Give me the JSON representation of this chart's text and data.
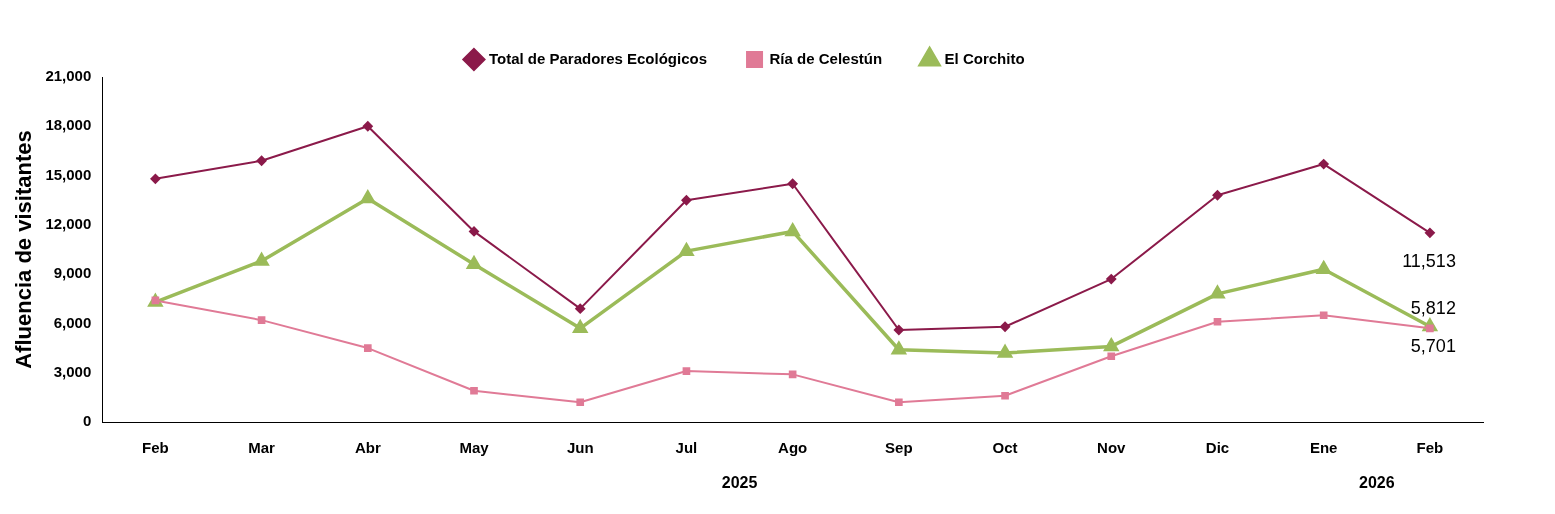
{
  "chart_data": {
    "type": "line",
    "ylabel": "Afluencia de visitantes",
    "categories": [
      "Feb",
      "Mar",
      "Abr",
      "May",
      "Jun",
      "Jul",
      "Ago",
      "Sep",
      "Oct",
      "Nov",
      "Dic",
      "Ene",
      "Feb"
    ],
    "ylim": [
      0,
      21000
    ],
    "yticks": [
      {
        "value": 0,
        "label": "0"
      },
      {
        "value": 3000,
        "label": "3,000"
      },
      {
        "value": 6000,
        "label": "6,000"
      },
      {
        "value": 9000,
        "label": "9,000"
      },
      {
        "value": 12000,
        "label": "12,000"
      },
      {
        "value": 15000,
        "label": "15,000"
      },
      {
        "value": 18000,
        "label": "18,000"
      },
      {
        "value": 21000,
        "label": "21,000"
      }
    ],
    "grid": false,
    "legend": "top",
    "annotations": [
      "2025",
      "2026"
    ],
    "series": [
      {
        "name": "Total de Paradores Ecológicos",
        "color": "#8b1a4a",
        "marker": "diamond",
        "values": [
          14800,
          15900,
          18000,
          11600,
          6900,
          13500,
          14500,
          5600,
          5800,
          8700,
          13800,
          15700,
          11513
        ],
        "value_labels": [
          null,
          null,
          null,
          null,
          null,
          null,
          null,
          null,
          null,
          null,
          null,
          null,
          "11,513"
        ]
      },
      {
        "name": "Ría de Celestún",
        "color": "#e07a96",
        "marker": "square",
        "values": [
          7400,
          6200,
          4500,
          1900,
          1200,
          3100,
          2900,
          1200,
          1600,
          4000,
          6100,
          6500,
          5701
        ],
        "value_labels": [
          null,
          null,
          null,
          null,
          null,
          null,
          null,
          null,
          null,
          null,
          null,
          null,
          "5,701"
        ]
      },
      {
        "name": "El Corchito",
        "color": "#9bbb59",
        "marker": "triangle",
        "values": [
          7300,
          9800,
          13600,
          9600,
          5700,
          10400,
          11600,
          4400,
          4200,
          4600,
          7800,
          9300,
          5812
        ],
        "value_labels": [
          null,
          null,
          null,
          null,
          null,
          null,
          null,
          null,
          null,
          null,
          null,
          null,
          "5,812"
        ]
      }
    ]
  }
}
